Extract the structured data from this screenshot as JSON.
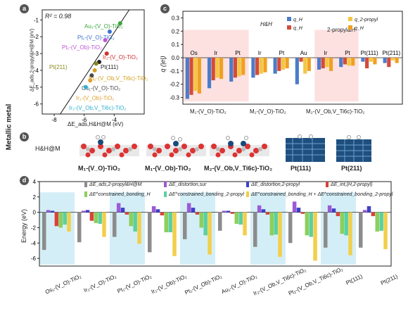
{
  "side_label": "Metallic metal",
  "panels": {
    "a": "a",
    "b": "b",
    "c": "c",
    "d": "d"
  },
  "panel_a": {
    "r2": "R² = 0.98",
    "xlabel": "ΔE_ads,H&H@M (eV)",
    "ylabel": "ΔE_ads,2-propyl&H@M (eV)",
    "xticks": [
      "-8",
      "-6",
      "-4"
    ],
    "yticks": [
      "-1",
      "-2",
      "-3",
      "-4",
      "-5",
      "-6"
    ],
    "labels": [
      {
        "text": "Au₁-(V_O)-TiO₂",
        "color": "#3aa63a"
      },
      {
        "text": "Pt₁-(V_O)-TiO₂",
        "color": "#3c6fd1"
      },
      {
        "text": "Pt₁-(V_Ob)-TiO₂",
        "color": "#c055d6"
      },
      {
        "text": "Ir₁-(V_O)-TiO₂",
        "color": "#d03030"
      },
      {
        "text": "Pt(111)",
        "color": "#222222"
      },
      {
        "text": "Pt(211)",
        "color": "#8a8a1a"
      },
      {
        "text": "Pt₂-(V_Ob,V_Ti6c)-TiO₂",
        "color": "#d4a020"
      },
      {
        "text": "Os₁-(V_O)-TiO₂",
        "color": "#4a4a4a"
      },
      {
        "text": "Ir₁-(V_Ob)-TiO₂",
        "color": "#e0a030"
      },
      {
        "text": "Ir₂-(V_Ob,V_Ti6c)-TiO₂",
        "color": "#30b0d0"
      }
    ]
  },
  "panel_b": {
    "row_label": "H&H@M",
    "structures": [
      "M₁-(V_O)-TiO₂",
      "M₁-(V_Ob)-TiO₂",
      "M₂-(V_Ob,V_Ti6c)-TiO₂",
      "Pt(111)",
      "Pt(211)"
    ]
  },
  "chart_c": {
    "type": "bar",
    "ylabel": "q (|e|)",
    "yticks": [
      "0.3",
      "0.2",
      "0.1",
      "0.0",
      "-0.1",
      "-0.2",
      "-0.3"
    ],
    "legend_title_1": "H&H",
    "legend_title_2": "2-propyl&H",
    "legend": [
      "q_H",
      "q_H",
      "q_2-propyl",
      "q_H"
    ],
    "legend_colors": [
      "#4a7dc9",
      "#d64a3a",
      "#f2c744",
      "#f0a020"
    ],
    "metal_labels": [
      "Os",
      "Ir",
      "Pt",
      "Ir",
      "Pt",
      "Au",
      "Ir",
      "Pt",
      "Pt(111)",
      "Pt(211)"
    ],
    "group_labels": [
      "M₁-(V_O)-TiO₂",
      "M₁-(V_O)-TiO₂",
      "M₂-(V_Ob,V_Ti6c)-TiO₂"
    ],
    "series": [
      {
        "values": [
          -0.31,
          -0.23,
          -0.18,
          -0.15,
          -0.12,
          -0.2,
          -0.09,
          -0.07,
          -0.03,
          -0.04
        ]
      },
      {
        "values": [
          -0.28,
          -0.17,
          -0.15,
          -0.13,
          -0.1,
          -0.03,
          -0.08,
          -0.05,
          -0.08,
          -0.07
        ]
      },
      {
        "values": [
          -0.25,
          -0.15,
          -0.14,
          -0.12,
          -0.09,
          -0.12,
          -0.07,
          -0.06,
          -0.03,
          -0.02
        ]
      },
      {
        "values": [
          -0.27,
          -0.16,
          -0.13,
          -0.11,
          -0.08,
          -0.1,
          -0.1,
          -0.06,
          -0.05,
          -0.04
        ]
      }
    ],
    "ylim": [
      -0.35,
      0.35
    ]
  },
  "chart_d": {
    "type": "bar",
    "ylabel": "Energy (eV)",
    "yticks": [
      "4",
      "2",
      "0",
      "-2",
      "-4",
      "-6"
    ],
    "ylim": [
      -7,
      4
    ],
    "categories": [
      "Os₁-(V_O)-TiO₂",
      "Ir₁-(V_O)-TiO₂",
      "Pt₁-(V_O)-TiO₂",
      "Ir₁-(V_Ob)-TiO₂",
      "Pt₁-(V_Ob)-TiO₂",
      "Au₁-(V_O)-TiO₂",
      "Ir₂-(V_Ob,V_Ti6c)-TiO₂",
      "Pt₂-(V_Ob,V_Ti6c)-TiO₂",
      "Pt(111)",
      "Pt(211)"
    ],
    "legend": [
      "ΔE_ads,2-propyl&H@M",
      "ΔE_distortion,sur",
      "ΔE_distortion,2-propyl",
      "ΔE_int,(H,2-propyl)",
      "ΔE^constrained_bonding_H",
      "ΔE^constrained_bonding_2-propyl",
      "ΔE^constrained_bonding_H + ΔE^constrained_bonding_2-propyl"
    ],
    "series": [
      {
        "color": "#8c8c8c",
        "values": [
          -4.9,
          -3.9,
          -3.2,
          -5.2,
          -3.5,
          -2.4,
          -4.5,
          -4.0,
          -4.6,
          -4.6
        ]
      },
      {
        "color": "#9b5bd6",
        "values": [
          0.3,
          0.2,
          1.2,
          0.8,
          1.2,
          0.2,
          0.9,
          1.4,
          0.9,
          0.3
        ]
      },
      {
        "color": "#4040c8",
        "values": [
          0.2,
          0.3,
          0.6,
          0.4,
          0.6,
          0.2,
          0.4,
          0.6,
          0.5,
          0.8
        ]
      },
      {
        "color": "#d9423a",
        "values": [
          -1.8,
          -1.1,
          -0.3,
          -0.4,
          -0.3,
          -0.2,
          -0.3,
          -0.2,
          -0.5,
          -0.5
        ]
      },
      {
        "color": "#8ccf5a",
        "values": [
          -2.0,
          -1.4,
          -1.8,
          -2.6,
          -2.0,
          -1.5,
          -3.0,
          -3.0,
          -2.8,
          -2.5
        ]
      },
      {
        "color": "#5ad0a0",
        "values": [
          -1.6,
          -1.5,
          -2.5,
          -2.6,
          -3.0,
          -1.6,
          -2.9,
          -3.2,
          -3.0,
          -2.4
        ]
      },
      {
        "color": "#f2cf4a",
        "values": [
          -2.5,
          -3.2,
          -4.1,
          -5.7,
          -5.5,
          -3.0,
          -5.8,
          -6.3,
          -5.6,
          -4.8
        ]
      }
    ],
    "highlight": [
      0,
      2,
      4,
      6,
      8
    ]
  }
}
